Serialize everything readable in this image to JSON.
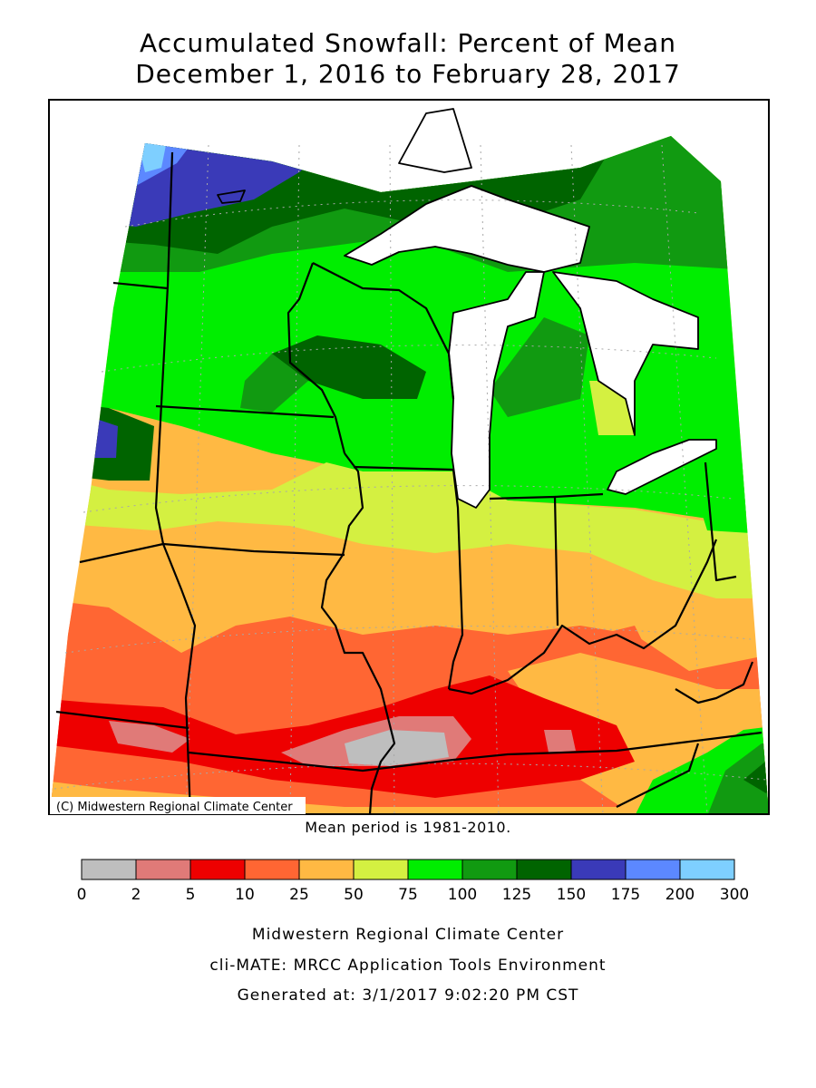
{
  "title": {
    "line1": "Accumulated Snowfall: Percent of Mean",
    "line2": "December 1, 2016 to February 28, 2017"
  },
  "map": {
    "copyright": "(C) Midwestern Regional Climate Center",
    "mean_period": "Mean period is 1981-2010."
  },
  "legend": {
    "ticks": [
      "0",
      "2",
      "5",
      "10",
      "25",
      "50",
      "75",
      "100",
      "125",
      "150",
      "175",
      "200",
      "300"
    ],
    "colors": [
      "#bebebe",
      "#e07a78",
      "#ee0000",
      "#ff6633",
      "#ffb943",
      "#d4f041",
      "#00ee00",
      "#119a11",
      "#006400",
      "#3a3ab8",
      "#5c88ff",
      "#7ecfff"
    ]
  },
  "footer": {
    "line1": "Midwestern Regional Climate Center",
    "line2": "cli-MATE: MRCC Application Tools Environment",
    "line3": "Generated at: 3/1/2017 9:02:20 PM CST"
  }
}
